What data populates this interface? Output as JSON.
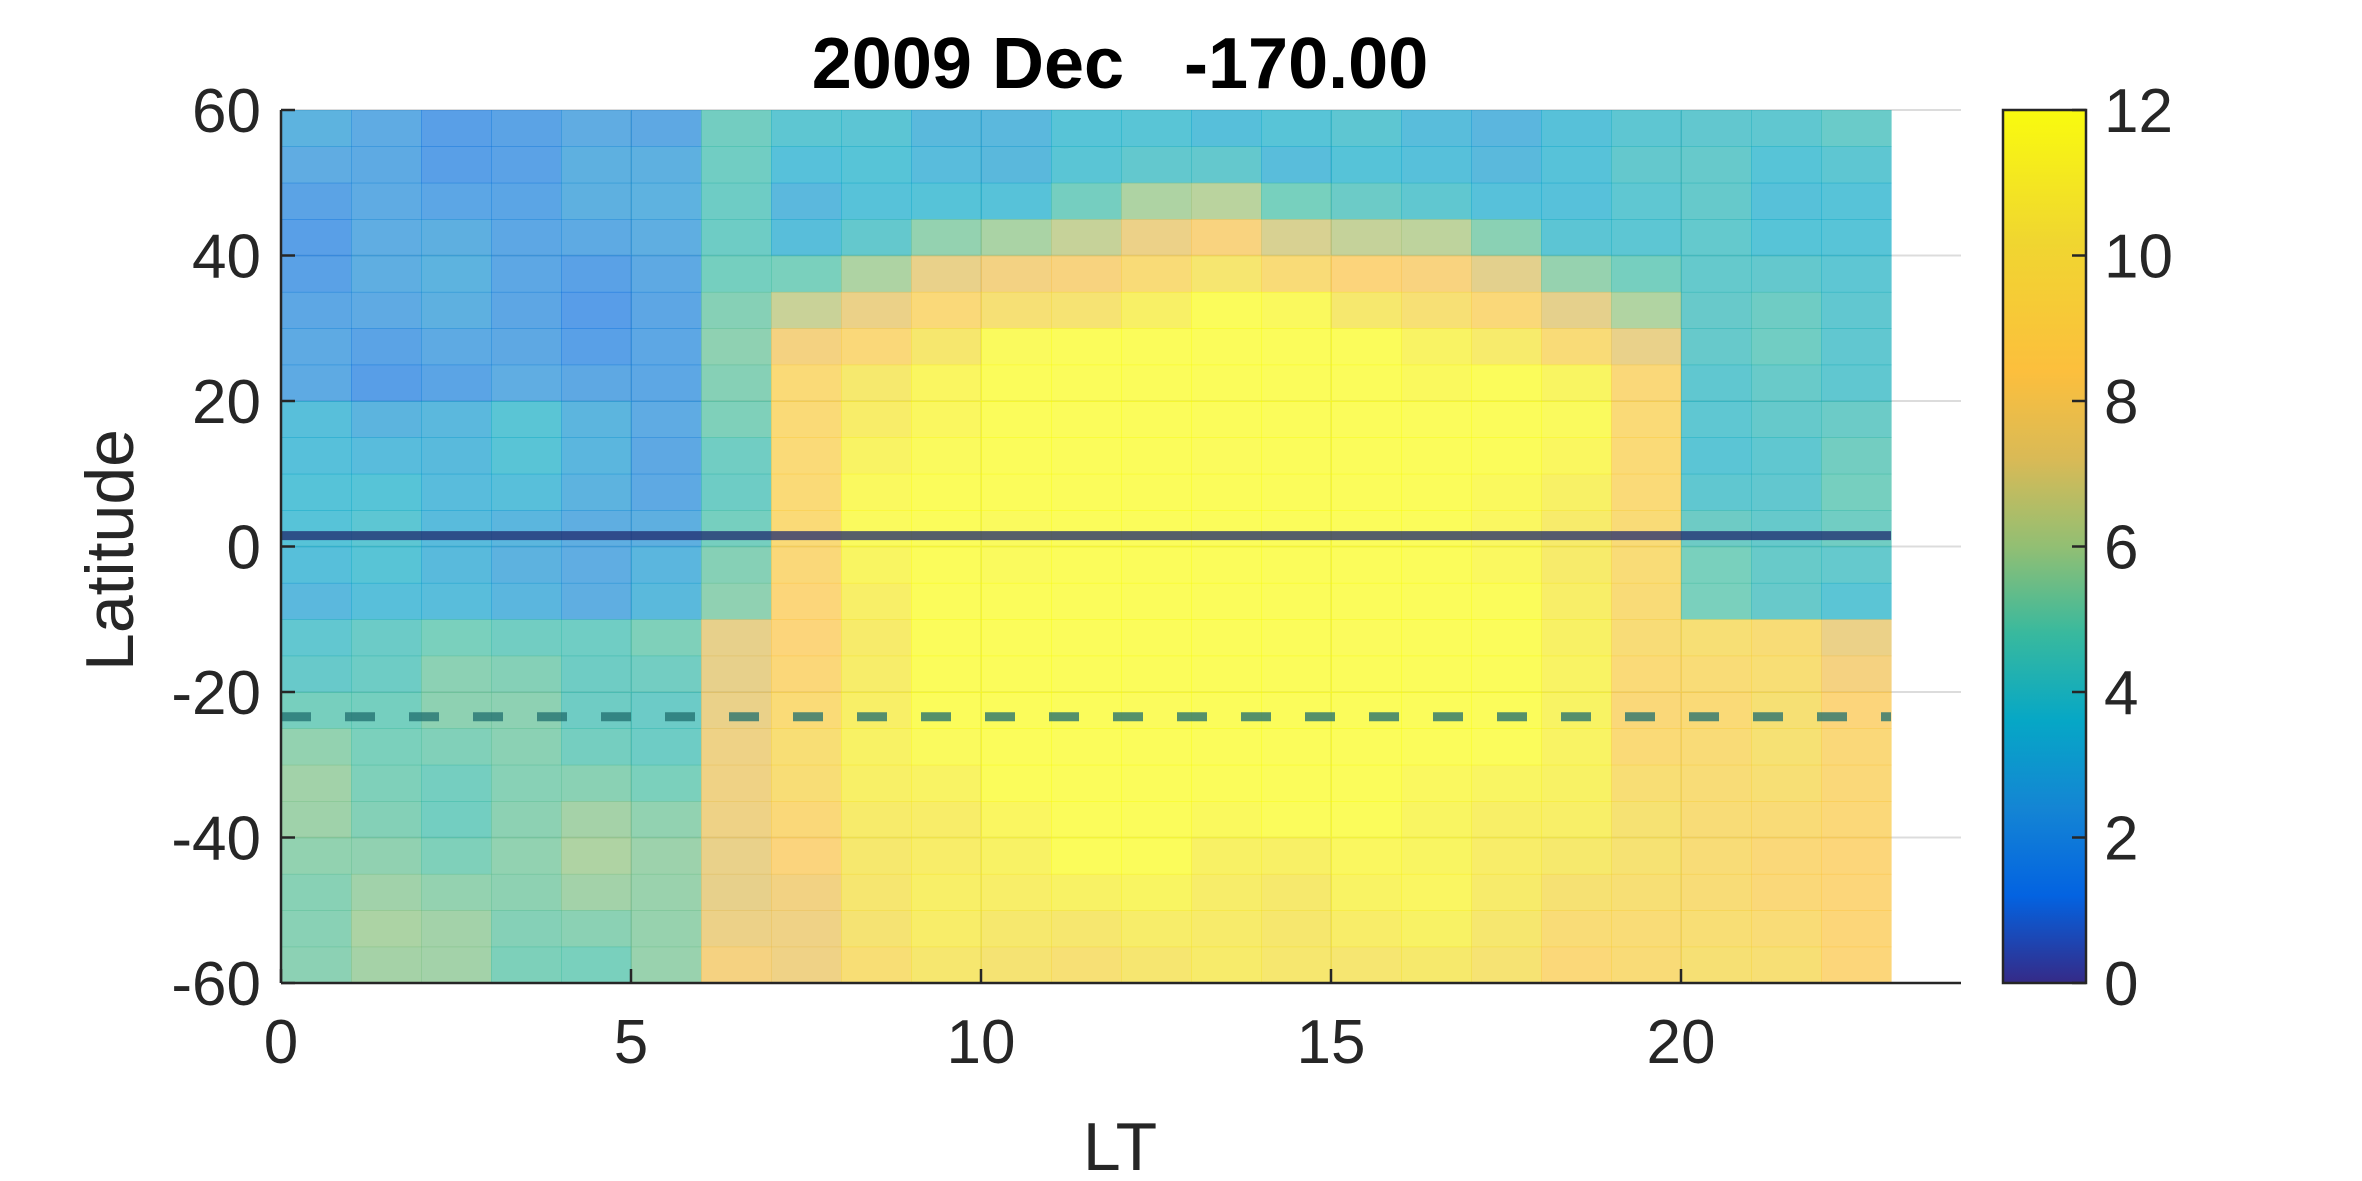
{
  "chart_data": {
    "type": "heatmap",
    "title": "2009 Dec   -170.00",
    "xlabel": "LT",
    "ylabel": "Latitude",
    "xlim": [
      0,
      24
    ],
    "ylim": [
      -60,
      60
    ],
    "x_ticks": [
      0,
      5,
      10,
      15,
      20
    ],
    "y_ticks": [
      60,
      40,
      20,
      0,
      -20,
      -40,
      -60
    ],
    "x_tick_labels": [
      "0",
      "5",
      "10",
      "15",
      "20"
    ],
    "y_tick_labels": [
      "60",
      "40",
      "20",
      "0",
      "-20",
      "-40",
      "-60"
    ],
    "colorbar": {
      "min": 0,
      "max": 12,
      "ticks": [
        0,
        2,
        4,
        6,
        8,
        10,
        12
      ],
      "tick_labels": [
        "0",
        "2",
        "4",
        "6",
        "8",
        "10",
        "12"
      ],
      "colormap": "parula"
    },
    "x_cells": [
      0,
      1,
      2,
      3,
      4,
      5,
      6,
      7,
      8,
      9,
      10,
      11,
      12,
      13,
      14,
      15,
      16,
      17,
      18,
      19,
      20,
      21,
      22
    ],
    "lat_edges": [
      60,
      55,
      50,
      45,
      40,
      35,
      30,
      25,
      20,
      15,
      10,
      5,
      0,
      -5,
      -10,
      -15,
      -20,
      -25,
      -30,
      -35,
      -40,
      -45,
      -50,
      -55,
      -60
    ],
    "lines": [
      {
        "latitude": 1.5,
        "style": "solid",
        "color": "#1f2a6e"
      },
      {
        "latitude": -23.4,
        "style": "dashed",
        "color": "#1f6e6e"
      }
    ],
    "grid": true,
    "alpha": 0.68
  }
}
